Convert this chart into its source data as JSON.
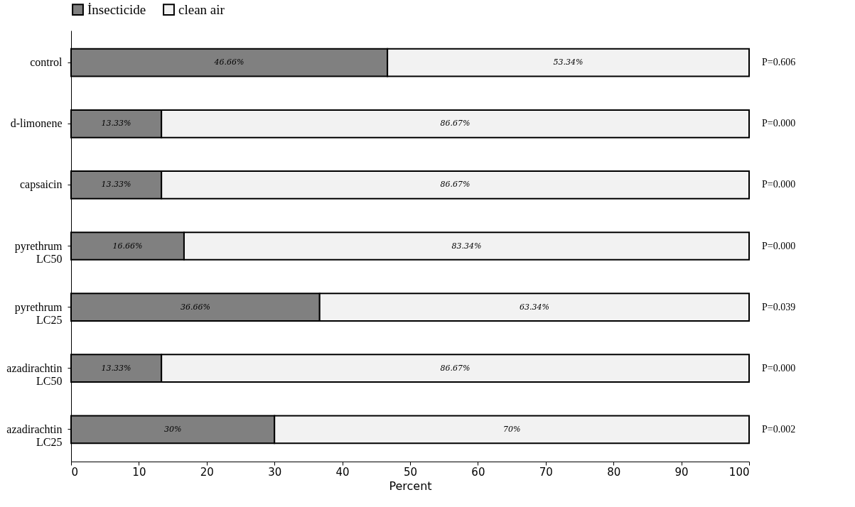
{
  "chart_data": {
    "type": "bar",
    "orientation": "horizontal",
    "stacked": true,
    "categories": [
      "control",
      "d-limonene",
      "capsaicin",
      "pyrethrum LC50",
      "pyrethrum LC25",
      "azadirachtin LC50",
      "azadirachtin LC25"
    ],
    "series": [
      {
        "name": "İnsecticide",
        "color": "#808080",
        "values": [
          46.66,
          13.33,
          13.33,
          16.66,
          36.66,
          13.33,
          30
        ],
        "value_labels": [
          "46.66%",
          "13.33%",
          "13.33%",
          "16.66%",
          "36.66%",
          "13.33%",
          "30%"
        ]
      },
      {
        "name": "clean air",
        "color": "#f2f2f2",
        "values": [
          53.34,
          86.67,
          86.67,
          83.34,
          63.34,
          86.67,
          70
        ],
        "value_labels": [
          "53.34%",
          "86.67%",
          "86.67%",
          "83.34%",
          "63.34%",
          "86.67%",
          "70%"
        ]
      }
    ],
    "xlim": [
      0,
      100
    ],
    "xticks": [
      0,
      10,
      20,
      30,
      40,
      50,
      60,
      70,
      80,
      90,
      100
    ],
    "xlabel": "Percent",
    "legend": "top",
    "grid": false,
    "annotations": [
      "P=0.606",
      "P=0.000",
      "P=0.000",
      "P=0.000",
      "P=0.039",
      "P=0.000",
      "P=0.002"
    ]
  }
}
